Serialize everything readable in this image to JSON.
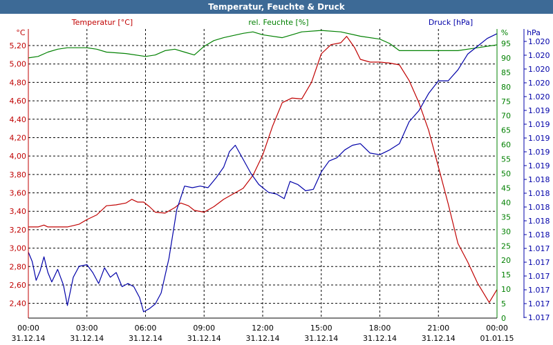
{
  "window": {
    "title": "Temperatur, Feuchte & Druck"
  },
  "chart_data": {
    "type": "line",
    "title": "Temperatur, Feuchte & Druck",
    "grid": true,
    "colors": {
      "temperature": "#c00000",
      "humidity": "#008000",
      "pressure": "#0000a8",
      "axis_text": "#000000"
    },
    "x": {
      "range": [
        "2014-12-31 00:00",
        "2015-01-01 00:00"
      ],
      "tick_labels": [
        [
          "00:00",
          "31.12.14"
        ],
        [
          "03:00",
          "31.12.14"
        ],
        [
          "06:00",
          "31.12.14"
        ],
        [
          "09:00",
          "31.12.14"
        ],
        [
          "12:00",
          "31.12.14"
        ],
        [
          "15:00",
          "31.12.14"
        ],
        [
          "18:00",
          "31.12.14"
        ],
        [
          "21:00",
          "31.12.14"
        ],
        [
          "00:00",
          "01.01.15"
        ]
      ]
    },
    "axes": {
      "temperature": {
        "label": "Temperatur [°C]",
        "unit": "°C",
        "ylim": [
          2.24,
          5.38
        ],
        "ticks": [
          "5,20",
          "5,00",
          "4,80",
          "4,60",
          "4,40",
          "4,20",
          "4,00",
          "3,80",
          "3,60",
          "3,40",
          "3,20",
          "3,00",
          "2,80",
          "2,60",
          "2,40"
        ]
      },
      "humidity": {
        "label": "rel. Feuchte [%]",
        "unit": "%",
        "ylim": [
          0,
          100
        ],
        "ticks": [
          "95",
          "90",
          "85",
          "80",
          "75",
          "70",
          "65",
          "60",
          "55",
          "50",
          "45",
          "40",
          "35",
          "30",
          "25",
          "20",
          "15",
          "10",
          "5",
          "0"
        ]
      },
      "pressure": {
        "label": "Druck [hPa]",
        "unit": "hPa",
        "ticks": [
          "1.020",
          "1.020",
          "1.020",
          "1.020",
          "1.020",
          "1.019",
          "1.019",
          "1.019",
          "1.019",
          "1.019",
          "1.018",
          "1.018",
          "1.018",
          "1.018",
          "1.018",
          "1.017",
          "1.017",
          "1.017",
          "1.017",
          "1.017",
          "1.017"
        ]
      }
    },
    "series": [
      {
        "name": "Temperatur [°C]",
        "axis": "temperature",
        "color": "#c00000",
        "points": [
          [
            0,
            3.23
          ],
          [
            0.5,
            3.23
          ],
          [
            0.8,
            3.25
          ],
          [
            1.0,
            3.23
          ],
          [
            2.0,
            3.23
          ],
          [
            2.6,
            3.26
          ],
          [
            3.0,
            3.31
          ],
          [
            3.5,
            3.36
          ],
          [
            4.0,
            3.46
          ],
          [
            4.5,
            3.47
          ],
          [
            5.0,
            3.49
          ],
          [
            5.3,
            3.53
          ],
          [
            5.6,
            3.5
          ],
          [
            5.9,
            3.5
          ],
          [
            6.2,
            3.45
          ],
          [
            6.5,
            3.39
          ],
          [
            7.0,
            3.38
          ],
          [
            7.5,
            3.44
          ],
          [
            7.8,
            3.49
          ],
          [
            8.2,
            3.46
          ],
          [
            8.5,
            3.41
          ],
          [
            9.0,
            3.39
          ],
          [
            9.5,
            3.45
          ],
          [
            10.0,
            3.53
          ],
          [
            10.5,
            3.59
          ],
          [
            11.0,
            3.65
          ],
          [
            11.5,
            3.79
          ],
          [
            12.0,
            4.01
          ],
          [
            12.5,
            4.32
          ],
          [
            13.0,
            4.58
          ],
          [
            13.5,
            4.63
          ],
          [
            14.0,
            4.62
          ],
          [
            14.5,
            4.8
          ],
          [
            15.0,
            5.11
          ],
          [
            15.5,
            5.21
          ],
          [
            16.0,
            5.23
          ],
          [
            16.3,
            5.3
          ],
          [
            16.7,
            5.18
          ],
          [
            17.0,
            5.05
          ],
          [
            17.5,
            5.02
          ],
          [
            18.0,
            5.02
          ],
          [
            18.5,
            5.01
          ],
          [
            19.0,
            4.99
          ],
          [
            19.5,
            4.82
          ],
          [
            20.0,
            4.58
          ],
          [
            20.5,
            4.28
          ],
          [
            21.0,
            3.88
          ],
          [
            21.5,
            3.48
          ],
          [
            22.0,
            3.05
          ],
          [
            22.5,
            2.85
          ],
          [
            23.0,
            2.62
          ],
          [
            23.6,
            2.41
          ],
          [
            24.0,
            2.55
          ]
        ]
      },
      {
        "name": "rel. Feuchte [%]",
        "axis": "humidity",
        "color": "#008000",
        "points": [
          [
            0,
            90
          ],
          [
            0.5,
            90.5
          ],
          [
            1.0,
            92
          ],
          [
            1.5,
            93
          ],
          [
            2.0,
            93.5
          ],
          [
            3.0,
            93.5
          ],
          [
            3.5,
            93
          ],
          [
            4.0,
            92
          ],
          [
            5.0,
            91.5
          ],
          [
            6.0,
            90.5
          ],
          [
            6.5,
            91
          ],
          [
            7.0,
            92.5
          ],
          [
            7.5,
            93
          ],
          [
            8.0,
            92
          ],
          [
            8.5,
            91
          ],
          [
            9.0,
            94
          ],
          [
            9.5,
            96
          ],
          [
            10.0,
            97
          ],
          [
            11.0,
            98.5
          ],
          [
            11.5,
            99
          ],
          [
            12.0,
            98
          ],
          [
            13.0,
            97
          ],
          [
            13.5,
            98
          ],
          [
            14.0,
            99
          ],
          [
            15.0,
            99.5
          ],
          [
            16.0,
            99
          ],
          [
            17.0,
            97.5
          ],
          [
            18.0,
            96.5
          ],
          [
            18.5,
            95
          ],
          [
            19.0,
            92.5
          ],
          [
            20.0,
            92.5
          ],
          [
            21.0,
            92.5
          ],
          [
            22.0,
            92.5
          ],
          [
            23.0,
            93.5
          ],
          [
            24.0,
            94.5
          ]
        ]
      },
      {
        "name": "Druck [hPa]",
        "axis": "pressure",
        "color": "#0000a8",
        "points": [
          [
            0,
            1.01725
          ],
          [
            0.2,
            1.01719
          ],
          [
            0.4,
            1.01707
          ],
          [
            0.6,
            1.01713
          ],
          [
            0.8,
            1.01722
          ],
          [
            1.0,
            1.01712
          ],
          [
            1.2,
            1.01706
          ],
          [
            1.5,
            1.01714
          ],
          [
            1.8,
            1.01704
          ],
          [
            2.0,
            1.01691
          ],
          [
            2.3,
            1.01709
          ],
          [
            2.6,
            1.01716
          ],
          [
            3.0,
            1.01717
          ],
          [
            3.3,
            1.01712
          ],
          [
            3.6,
            1.01705
          ],
          [
            3.9,
            1.01715
          ],
          [
            4.2,
            1.01709
          ],
          [
            4.5,
            1.01712
          ],
          [
            4.8,
            1.01703
          ],
          [
            5.1,
            1.01705
          ],
          [
            5.4,
            1.01703
          ],
          [
            5.7,
            1.01696
          ],
          [
            5.9,
            1.01687
          ],
          [
            6.2,
            1.01689
          ],
          [
            6.5,
            1.01692
          ],
          [
            6.8,
            1.01699
          ],
          [
            7.2,
            1.01721
          ],
          [
            7.6,
            1.01752
          ],
          [
            8.0,
            1.01767
          ],
          [
            8.4,
            1.01766
          ],
          [
            8.8,
            1.01767
          ],
          [
            9.2,
            1.01766
          ],
          [
            9.6,
            1.01772
          ],
          [
            10.0,
            1.01779
          ],
          [
            10.3,
            1.01789
          ],
          [
            10.6,
            1.01793
          ],
          [
            11.0,
            1.01784
          ],
          [
            11.4,
            1.01775
          ],
          [
            11.8,
            1.01768
          ],
          [
            12.3,
            1.01763
          ],
          [
            12.7,
            1.01762
          ],
          [
            13.1,
            1.01759
          ],
          [
            13.4,
            1.0177
          ],
          [
            13.8,
            1.01768
          ],
          [
            14.2,
            1.01764
          ],
          [
            14.6,
            1.01765
          ],
          [
            15.0,
            1.01776
          ],
          [
            15.4,
            1.01783
          ],
          [
            15.8,
            1.01785
          ],
          [
            16.2,
            1.0179
          ],
          [
            16.6,
            1.01793
          ],
          [
            17.0,
            1.01794
          ],
          [
            17.5,
            1.01788
          ],
          [
            18.0,
            1.01787
          ],
          [
            18.5,
            1.0179
          ],
          [
            19.0,
            1.01794
          ],
          [
            19.5,
            1.01808
          ],
          [
            20.0,
            1.01815
          ],
          [
            20.5,
            1.01826
          ],
          [
            21.0,
            1.01834
          ],
          [
            21.5,
            1.01834
          ],
          [
            22.0,
            1.01841
          ],
          [
            22.5,
            1.01851
          ],
          [
            23.0,
            1.01856
          ],
          [
            23.5,
            1.01861
          ],
          [
            24.0,
            1.01864
          ]
        ]
      }
    ],
    "pressure_plot_range": [
      1.01683,
      1.01867
    ]
  }
}
